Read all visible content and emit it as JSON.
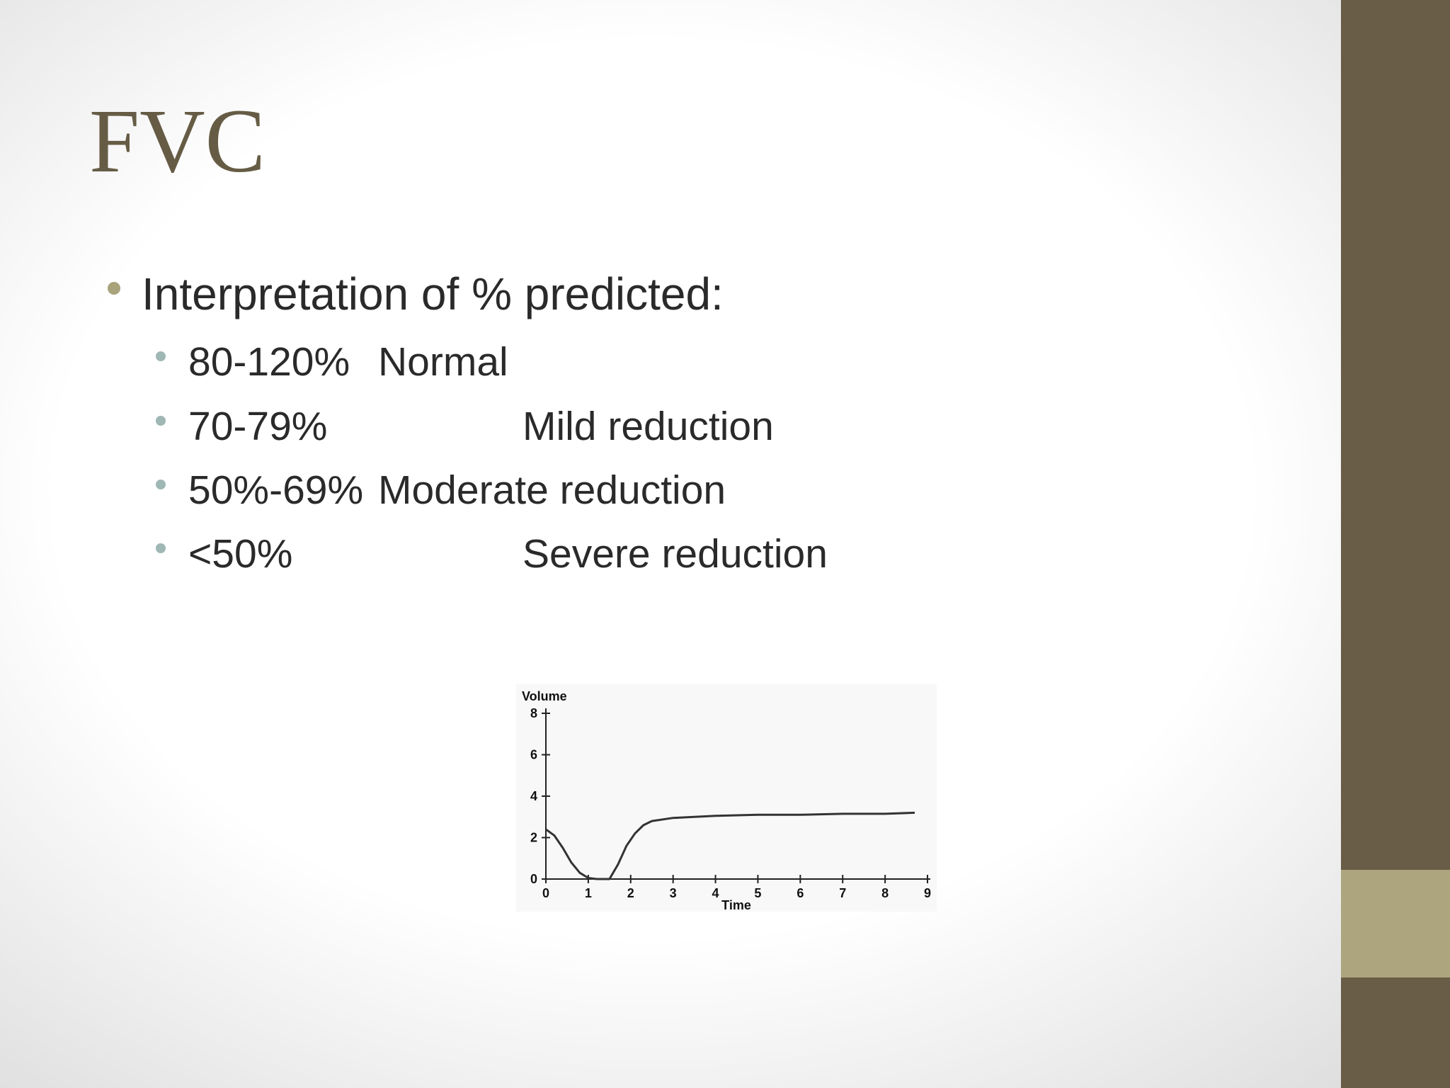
{
  "slide": {
    "title": "FVC",
    "bullet": "Interpretation of % predicted:",
    "items": [
      {
        "range": "80-120%",
        "label": "Normal"
      },
      {
        "range": "70-79%",
        "label": "Mild reduction"
      },
      {
        "range": "50%-69%",
        "label": "Moderate reduction"
      },
      {
        "range": "<50%",
        "label": "Severe reduction"
      }
    ]
  },
  "chart_data": {
    "type": "line",
    "x_label": "Time",
    "y_label": "Volume",
    "x": [
      0,
      0.2,
      0.4,
      0.6,
      0.8,
      1.0,
      1.2,
      1.5,
      1.7,
      1.9,
      2.1,
      2.3,
      2.5,
      3,
      4,
      5,
      6,
      7,
      8,
      8.7
    ],
    "values": [
      2.4,
      2.1,
      1.5,
      0.8,
      0.3,
      0.05,
      0,
      0,
      0.7,
      1.6,
      2.2,
      2.6,
      2.8,
      2.95,
      3.05,
      3.1,
      3.1,
      3.15,
      3.15,
      3.2
    ],
    "color": "#333333",
    "xlim": [
      0,
      9
    ],
    "xticks": [
      0,
      1,
      2,
      3,
      4,
      5,
      6,
      7,
      8,
      9
    ],
    "ylim": [
      0,
      8
    ],
    "yticks": [
      0,
      2,
      4,
      6,
      8
    ]
  }
}
